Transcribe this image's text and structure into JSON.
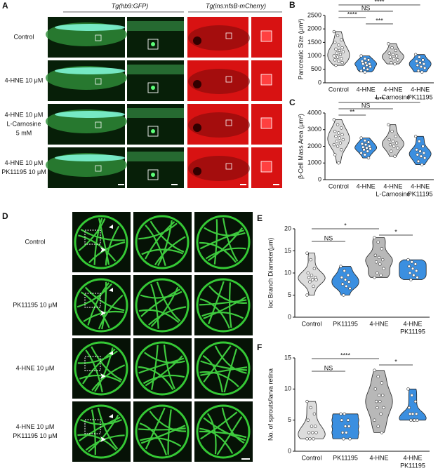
{
  "panel_a": {
    "letter": "A",
    "headers": [
      "Tg(hb9:GFP)",
      "Tg(ins:nfsB-mCherry)"
    ],
    "rows": [
      [
        "Control"
      ],
      [
        "4-HNE 10 μM"
      ],
      [
        "4-HNE 10 μM",
        "L-Carnosine",
        "5 mM"
      ],
      [
        "4-HNE 10 μM",
        "PK11195 10 μM"
      ]
    ]
  },
  "panel_d": {
    "letter": "D",
    "rows": [
      [
        "Control"
      ],
      [
        "PK11195 10 μM"
      ],
      [
        "4-HNE 10 μM"
      ],
      [
        "4-HNE 10 μM",
        "PK11195 10 μM"
      ]
    ]
  },
  "charts": [
    {
      "type": "violin",
      "letter": "B",
      "y_label": "Pancreatic Size (μm²)",
      "categories": [
        [
          "Control"
        ],
        [
          "4-HNE"
        ],
        [
          "4-HNE",
          "L-Carnosine"
        ],
        [
          "4-HNE",
          "PK11195"
        ]
      ],
      "groups": [
        {
          "color": "#d9d9d9",
          "values": [
            1900,
            1750,
            1600,
            1500,
            1400,
            1300,
            1250,
            1200,
            1150,
            1100,
            1050,
            1000,
            950,
            900,
            850,
            800,
            750,
            650
          ]
        },
        {
          "color": "#3b8fe0",
          "values": [
            1000,
            900,
            850,
            800,
            750,
            700,
            700,
            650,
            600,
            550,
            500,
            450,
            400
          ]
        },
        {
          "color": "#c8c8c8",
          "values": [
            1450,
            1300,
            1200,
            1100,
            1050,
            1000,
            950,
            900,
            850,
            750,
            700
          ]
        },
        {
          "color": "#3b8fe0",
          "values": [
            1050,
            950,
            850,
            800,
            750,
            700,
            650,
            600,
            550,
            450,
            400
          ]
        }
      ],
      "ylim": [
        0,
        2500
      ],
      "yticks": [
        0,
        500,
        1000,
        1500,
        2000,
        2500
      ],
      "comparisons": [
        {
          "between": [
            0,
            3
          ],
          "label": "****"
        },
        {
          "between": [
            0,
            2
          ],
          "label": "NS"
        },
        {
          "between": [
            0,
            1
          ],
          "label": "****"
        },
        {
          "between": [
            1,
            2
          ],
          "label": "***"
        }
      ]
    },
    {
      "type": "violin",
      "letter": "C",
      "y_label": "β-Cell Mass Area (μm²)",
      "categories": [
        [
          "Control"
        ],
        [
          "4-HNE"
        ],
        [
          "4-HNE",
          "L-Carnosine"
        ],
        [
          "4-HNE",
          "PK11195"
        ]
      ],
      "groups": [
        {
          "color": "#d9d9d9",
          "values": [
            3600,
            3300,
            3100,
            2900,
            2800,
            2700,
            2600,
            2500,
            2400,
            2300,
            2200,
            2100,
            2000,
            1800,
            1500,
            1000
          ]
        },
        {
          "color": "#3b8fe0",
          "values": [
            2500,
            2350,
            2250,
            2150,
            2100,
            2000,
            1950,
            1900,
            1850,
            1800,
            1700,
            1600,
            1500,
            1300
          ]
        },
        {
          "color": "#c8c8c8",
          "values": [
            3300,
            2900,
            2600,
            2400,
            2300,
            2200,
            2100,
            2000,
            1900,
            1700,
            1400
          ]
        },
        {
          "color": "#3b8fe0",
          "values": [
            2600,
            2300,
            2000,
            1800,
            1700,
            1600,
            1500,
            1400,
            1300,
            1100,
            900
          ]
        }
      ],
      "ylim": [
        0,
        4000
      ],
      "yticks": [
        0,
        1000,
        2000,
        3000,
        4000
      ],
      "comparisons": [
        {
          "between": [
            0,
            3
          ],
          "label": "****"
        },
        {
          "between": [
            0,
            2
          ],
          "label": "NS"
        },
        {
          "between": [
            0,
            1
          ],
          "label": "**"
        }
      ]
    },
    {
      "type": "violin",
      "letter": "E",
      "y_label": "Ioc Branch Diameter(μm)",
      "categories": [
        [
          "Control"
        ],
        [
          "PK11195"
        ],
        [
          "4-HNE"
        ],
        [
          "4-HNE",
          "PK11195"
        ]
      ],
      "groups": [
        {
          "color": "#dcdcdc",
          "values": [
            14.5,
            13,
            11,
            10,
            9.5,
            9,
            9,
            8.5,
            8.5,
            8,
            7,
            5
          ]
        },
        {
          "color": "#3b8fe0",
          "values": [
            11.5,
            10.5,
            9.5,
            9,
            8.5,
            8,
            7.5,
            7,
            6.5,
            5
          ]
        },
        {
          "color": "#b8b8b8",
          "values": [
            18,
            17,
            15.5,
            14,
            13.5,
            13,
            12.5,
            12,
            11,
            10,
            9.5,
            9
          ]
        },
        {
          "color": "#3b8fe0",
          "values": [
            13,
            12.5,
            12,
            11.5,
            11,
            10.5,
            10,
            9.5,
            9,
            8.5
          ]
        }
      ],
      "ylim": [
        0,
        20
      ],
      "yticks": [
        0,
        5,
        10,
        15,
        20
      ],
      "comparisons": [
        {
          "between": [
            0,
            2
          ],
          "label": "*"
        },
        {
          "between": [
            2,
            3
          ],
          "label": "*"
        },
        {
          "between": [
            0,
            1
          ],
          "label": "NS"
        }
      ]
    },
    {
      "type": "violin",
      "letter": "F",
      "y_label": "No. of sprouts/larva retina",
      "categories": [
        [
          "Control"
        ],
        [
          "PK11195"
        ],
        [
          "4-HNE"
        ],
        [
          "4-HNE",
          "PK11195"
        ]
      ],
      "groups": [
        {
          "color": "#dcdcdc",
          "values": [
            8,
            7,
            6,
            5,
            4,
            4,
            3,
            3,
            3,
            2,
            2,
            2
          ]
        },
        {
          "color": "#3b8fe0",
          "values": [
            6,
            6,
            5,
            5,
            4,
            4,
            3,
            3,
            2,
            2
          ]
        },
        {
          "color": "#b8b8b8",
          "values": [
            13,
            12,
            11,
            10,
            9,
            9,
            8,
            8,
            7,
            7,
            6,
            5,
            4,
            3
          ]
        },
        {
          "color": "#3b8fe0",
          "values": [
            10,
            9,
            8,
            7,
            6,
            6,
            6,
            5,
            5,
            5,
            5
          ]
        }
      ],
      "ylim": [
        0,
        15
      ],
      "yticks": [
        0,
        5,
        10,
        15
      ],
      "comparisons": [
        {
          "between": [
            0,
            2
          ],
          "label": "****"
        },
        {
          "between": [
            2,
            3
          ],
          "label": "*"
        },
        {
          "between": [
            0,
            1
          ],
          "label": "NS"
        }
      ]
    }
  ]
}
